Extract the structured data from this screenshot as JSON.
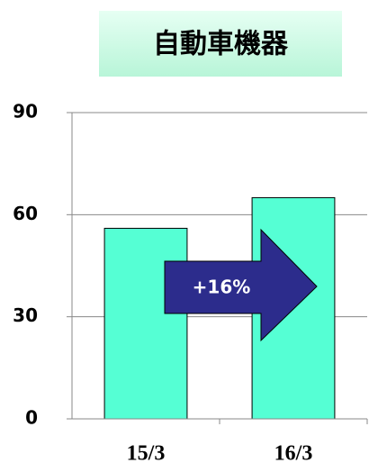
{
  "chart_data": {
    "type": "bar",
    "title": "自動車機器",
    "categories": [
      "15/3",
      "16/3"
    ],
    "values": [
      56,
      65
    ],
    "color": "#55ffd4",
    "ylim": [
      0,
      90
    ],
    "yticks": [
      0,
      30,
      60,
      90
    ],
    "grid": true,
    "annotation": "+16%"
  }
}
